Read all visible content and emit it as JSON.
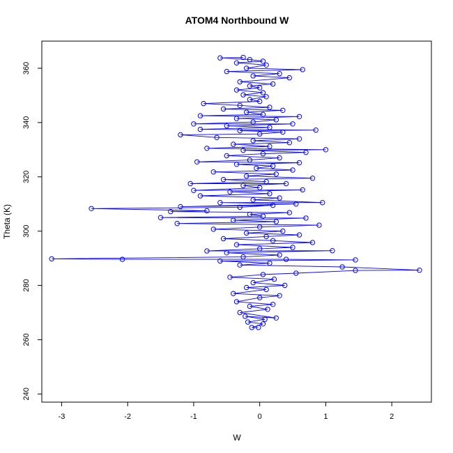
{
  "chart_data": {
    "type": "scatter",
    "title": "ATOM4 Northbound W",
    "xlabel": "W",
    "ylabel": "Theta (K)",
    "xlim": [
      -3.3,
      2.6
    ],
    "ylim": [
      237,
      370
    ],
    "x_ticks": [
      -3,
      -2,
      -1,
      0,
      1,
      2
    ],
    "y_ticks": [
      240,
      260,
      280,
      300,
      320,
      340,
      360
    ],
    "grid": false,
    "legend": "none",
    "connected": true,
    "series": [
      {
        "color": "#0000ff",
        "marker": "open-circle",
        "points": [
          [
            -0.02,
            264.5
          ],
          [
            -0.12,
            264.5
          ],
          [
            0.05,
            265.8
          ],
          [
            -0.18,
            266.5
          ],
          [
            0.08,
            267.5
          ],
          [
            -0.22,
            268.6
          ],
          [
            0.25,
            268.0
          ],
          [
            -0.3,
            270.0
          ],
          [
            0.12,
            271.2
          ],
          [
            -0.15,
            272.3
          ],
          [
            0.2,
            273.0
          ],
          [
            -0.35,
            274.0
          ],
          [
            0.0,
            275.5
          ],
          [
            0.3,
            276.2
          ],
          [
            -0.4,
            277.0
          ],
          [
            0.1,
            278.5
          ],
          [
            -0.2,
            279.2
          ],
          [
            0.38,
            280.0
          ],
          [
            -0.1,
            281.0
          ],
          [
            0.22,
            282.3
          ],
          [
            -0.45,
            283.0
          ],
          [
            0.05,
            284.0
          ],
          [
            0.55,
            284.5
          ],
          [
            1.45,
            285.5
          ],
          [
            2.42,
            285.6
          ],
          [
            1.25,
            286.8
          ],
          [
            -0.3,
            287.5
          ],
          [
            0.15,
            288.2
          ],
          [
            -0.6,
            289.0
          ],
          [
            1.45,
            289.4
          ],
          [
            0.4,
            289.6
          ],
          [
            -2.08,
            289.6
          ],
          [
            -3.15,
            289.8
          ],
          [
            -0.25,
            290.5
          ],
          [
            0.3,
            291.2
          ],
          [
            -0.5,
            292.0
          ],
          [
            1.1,
            292.8
          ],
          [
            -0.8,
            292.7
          ],
          [
            0.0,
            293.5
          ],
          [
            0.5,
            294.0
          ],
          [
            -0.35,
            295.0
          ],
          [
            0.8,
            295.8
          ],
          [
            0.2,
            296.5
          ],
          [
            -0.55,
            297.2
          ],
          [
            0.1,
            298.0
          ],
          [
            0.6,
            298.6
          ],
          [
            -0.2,
            299.3
          ],
          [
            0.35,
            300.0
          ],
          [
            -0.7,
            300.7
          ],
          [
            0.0,
            301.5
          ],
          [
            0.9,
            302.2
          ],
          [
            -1.25,
            302.8
          ],
          [
            0.25,
            303.5
          ],
          [
            -0.4,
            304.0
          ],
          [
            0.7,
            304.8
          ],
          [
            -1.5,
            305.0
          ],
          [
            0.05,
            305.5
          ],
          [
            -0.15,
            306.2
          ],
          [
            0.45,
            306.8
          ],
          [
            -1.35,
            307.2
          ],
          [
            -0.8,
            307.5
          ],
          [
            -2.55,
            308.3
          ],
          [
            -0.3,
            308.8
          ],
          [
            0.2,
            309.5
          ],
          [
            -1.2,
            309.0
          ],
          [
            0.55,
            310.0
          ],
          [
            -0.6,
            310.5
          ],
          [
            0.95,
            310.5
          ],
          [
            -0.1,
            311.5
          ],
          [
            0.3,
            312.2
          ],
          [
            -0.9,
            313.0
          ],
          [
            0.15,
            313.8
          ],
          [
            -0.45,
            314.5
          ],
          [
            0.65,
            315.2
          ],
          [
            -1.0,
            315.0
          ],
          [
            0.0,
            316.0
          ],
          [
            -0.25,
            316.8
          ],
          [
            0.4,
            317.5
          ],
          [
            -1.05,
            317.5
          ],
          [
            0.1,
            318.2
          ],
          [
            -0.55,
            319.0
          ],
          [
            0.8,
            319.5
          ],
          [
            -0.2,
            320.3
          ],
          [
            0.25,
            321.0
          ],
          [
            -0.7,
            321.8
          ],
          [
            0.5,
            322.5
          ],
          [
            -0.05,
            323.2
          ],
          [
            0.2,
            324.0
          ],
          [
            -0.35,
            324.6
          ],
          [
            0.6,
            325.2
          ],
          [
            -0.95,
            325.5
          ],
          [
            -0.15,
            326.2
          ],
          [
            0.3,
            327.0
          ],
          [
            -0.5,
            327.8
          ],
          [
            0.05,
            328.5
          ],
          [
            0.7,
            329.0
          ],
          [
            -0.25,
            329.8
          ],
          [
            1.0,
            330.0
          ],
          [
            -0.8,
            330.5
          ],
          [
            0.15,
            331.2
          ],
          [
            -0.4,
            332.0
          ],
          [
            0.45,
            332.6
          ],
          [
            -0.1,
            333.3
          ],
          [
            0.6,
            334.0
          ],
          [
            -0.65,
            334.5
          ],
          [
            -1.2,
            335.5
          ],
          [
            0.0,
            335.8
          ],
          [
            0.35,
            336.5
          ],
          [
            -0.3,
            337.0
          ],
          [
            0.85,
            337.2
          ],
          [
            -0.9,
            337.5
          ],
          [
            0.15,
            338.2
          ],
          [
            -0.5,
            338.8
          ],
          [
            0.5,
            339.5
          ],
          [
            -1.0,
            339.5
          ],
          [
            -0.1,
            340.2
          ],
          [
            0.25,
            341.0
          ],
          [
            -0.35,
            341.5
          ],
          [
            0.6,
            342.2
          ],
          [
            -0.9,
            342.5
          ],
          [
            0.05,
            343.0
          ],
          [
            -0.2,
            343.8
          ],
          [
            0.35,
            344.5
          ],
          [
            -0.55,
            345.0
          ],
          [
            0.15,
            345.6
          ],
          [
            -0.3,
            346.3
          ],
          [
            -0.85,
            347.0
          ],
          [
            0.0,
            347.8
          ],
          [
            -0.15,
            348.5
          ],
          [
            0.1,
            349.5
          ],
          [
            -0.25,
            350.2
          ],
          [
            0.05,
            351.0
          ],
          [
            -0.35,
            352.0
          ],
          [
            0.0,
            352.8
          ],
          [
            -0.15,
            353.5
          ],
          [
            0.2,
            354.2
          ],
          [
            -0.3,
            355.0
          ],
          [
            0.45,
            356.5
          ],
          [
            -0.1,
            357.2
          ],
          [
            0.3,
            358.0
          ],
          [
            -0.5,
            358.8
          ],
          [
            0.65,
            359.5
          ],
          [
            -0.2,
            360.0
          ],
          [
            0.1,
            361.2
          ],
          [
            -0.35,
            362.0
          ],
          [
            0.05,
            362.6
          ],
          [
            -0.15,
            363.2
          ],
          [
            -0.6,
            363.8
          ],
          [
            -0.25,
            364.0
          ]
        ]
      }
    ]
  }
}
